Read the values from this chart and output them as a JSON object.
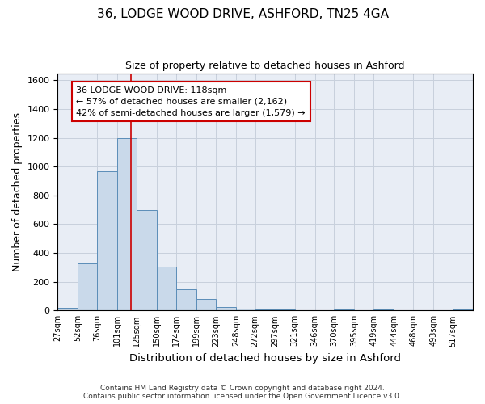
{
  "title_line1": "36, LODGE WOOD DRIVE, ASHFORD, TN25 4GA",
  "title_line2": "Size of property relative to detached houses in Ashford",
  "xlabel": "Distribution of detached houses by size in Ashford",
  "ylabel": "Number of detached properties",
  "bar_edges": [
    27,
    52,
    76,
    101,
    125,
    150,
    174,
    199,
    223,
    248,
    272,
    297,
    321,
    346,
    370,
    395,
    419,
    444,
    468,
    493,
    517,
    542
  ],
  "bar_heights": [
    20,
    325,
    970,
    1200,
    700,
    305,
    150,
    80,
    25,
    15,
    10,
    10,
    0,
    0,
    10,
    0,
    10,
    0,
    0,
    0,
    10
  ],
  "bar_color": "#c9d9ea",
  "bar_edge_color": "#5b8db8",
  "grid_color": "#c8d0dc",
  "background_color": "#e8edf5",
  "red_line_x": 118,
  "red_line_color": "#cc0000",
  "annotation_line1": "36 LODGE WOOD DRIVE: 118sqm",
  "annotation_line2": "← 57% of detached houses are smaller (2,162)",
  "annotation_line3": "42% of semi-detached houses are larger (1,579) →",
  "annotation_box_color": "#ffffff",
  "annotation_border_color": "#cc0000",
  "ylim": [
    0,
    1650
  ],
  "yticks": [
    0,
    200,
    400,
    600,
    800,
    1000,
    1200,
    1400,
    1600
  ],
  "footnote": "Contains HM Land Registry data © Crown copyright and database right 2024.\nContains public sector information licensed under the Open Government Licence v3.0.",
  "tick_labels": [
    "27sqm",
    "52sqm",
    "76sqm",
    "101sqm",
    "125sqm",
    "150sqm",
    "174sqm",
    "199sqm",
    "223sqm",
    "248sqm",
    "272sqm",
    "297sqm",
    "321sqm",
    "346sqm",
    "370sqm",
    "395sqm",
    "419sqm",
    "444sqm",
    "468sqm",
    "493sqm",
    "517sqm"
  ]
}
